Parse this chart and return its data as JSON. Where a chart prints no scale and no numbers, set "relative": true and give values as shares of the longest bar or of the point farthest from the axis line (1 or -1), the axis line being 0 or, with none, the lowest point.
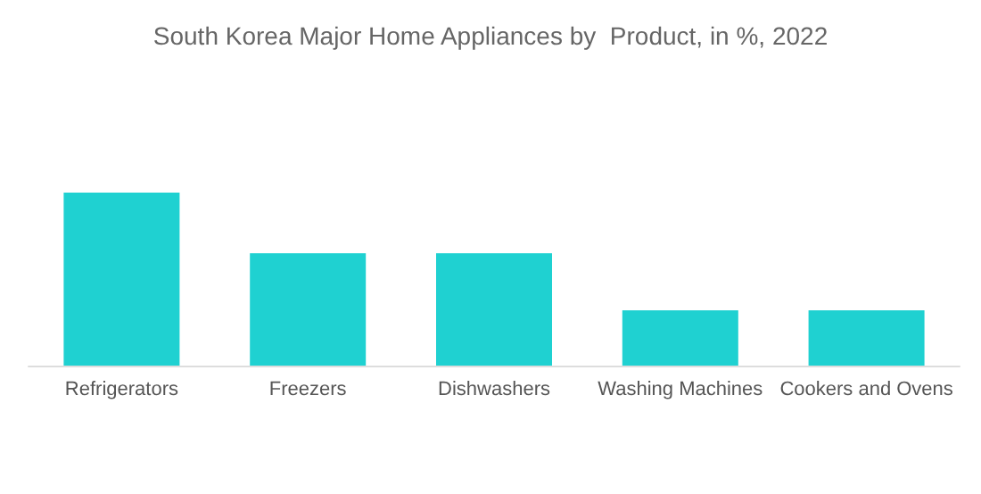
{
  "chart_data": {
    "type": "bar",
    "title": "South Korea Major Home Appliances by  Product, in %, 2022",
    "relative": true,
    "categories": [
      "Refrigerators",
      "Freezers",
      "Dishwashers",
      "Washing Machines",
      "Cookers and Ovens"
    ],
    "values": [
      1,
      0.65,
      0.65,
      0.32,
      0.32
    ],
    "color": "#1fd1d1"
  }
}
